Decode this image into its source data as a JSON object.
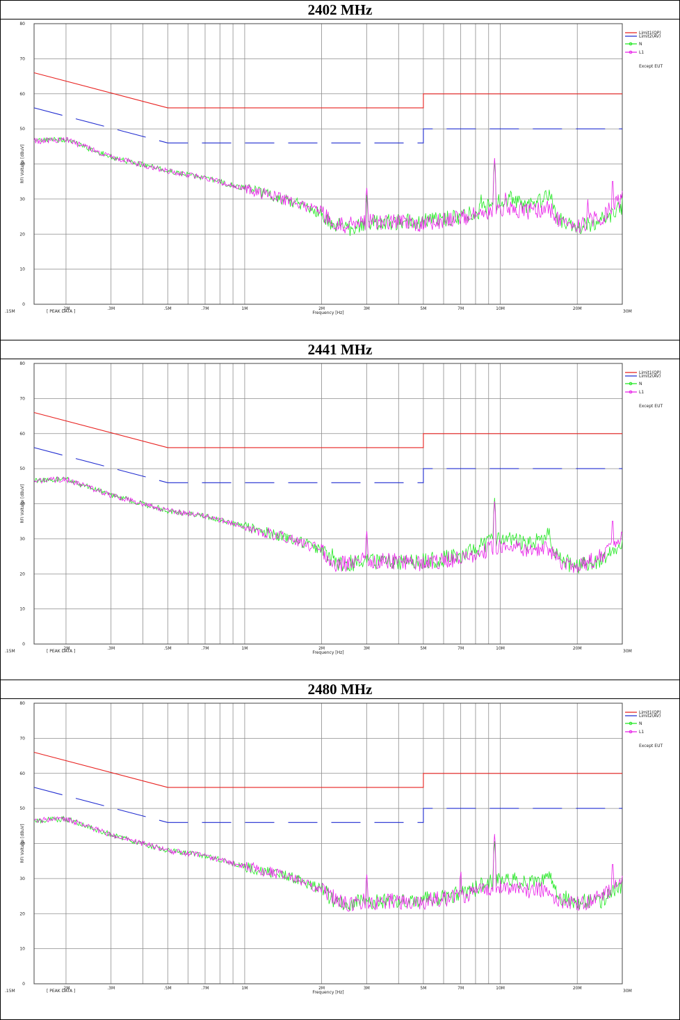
{
  "sections": [
    {
      "title": "2402 MHz"
    },
    {
      "title": "2441 MHz"
    },
    {
      "title": "2480 MHz"
    }
  ],
  "plot_labels": {
    "ylabel": "RFI Voltage [dBuV]",
    "xlabel": "Frequency [Hz]",
    "data_mode": "[ PEAK DATA ]",
    "note": "Except EUT"
  },
  "colors": {
    "limit_qp": "#e8211f",
    "limit_av": "#1f2bd0",
    "n": "#1fe81f",
    "l1": "#e81fe8",
    "grid": "#8c8c8c"
  },
  "chart_data": [
    {
      "type": "line",
      "title": "2402 MHz",
      "xlabel": "Frequency [Hz]",
      "ylabel": "RFI Voltage [dBuV]",
      "x_scale": "log",
      "xlim": [
        150000,
        30000000
      ],
      "ylim": [
        0,
        80
      ],
      "x_ticks": [
        {
          "value": 150000,
          "label": ".15M"
        },
        {
          "value": 200000,
          "label": ".2M"
        },
        {
          "value": 300000,
          "label": ".3M"
        },
        {
          "value": 500000,
          "label": ".5M"
        },
        {
          "value": 700000,
          "label": ".7M"
        },
        {
          "value": 1000000,
          "label": "1M"
        },
        {
          "value": 2000000,
          "label": "2M"
        },
        {
          "value": 3000000,
          "label": "3M"
        },
        {
          "value": 5000000,
          "label": "5M"
        },
        {
          "value": 7000000,
          "label": "7M"
        },
        {
          "value": 10000000,
          "label": "10M"
        },
        {
          "value": 20000000,
          "label": "20M"
        },
        {
          "value": 30000000,
          "label": "30M"
        }
      ],
      "y_ticks": [
        0,
        10,
        20,
        30,
        40,
        50,
        60,
        70,
        80
      ],
      "grid": true,
      "legend_position": "right",
      "series": [
        {
          "name": "Limit1(QP)",
          "style": "solid",
          "color": "#e8211f",
          "points": [
            [
              150000,
              66
            ],
            [
              500000,
              56
            ],
            [
              5000000,
              56
            ],
            [
              5000000,
              60
            ],
            [
              30000000,
              60
            ]
          ]
        },
        {
          "name": "Limit2(AV)",
          "style": "dashed",
          "color": "#1f2bd0",
          "points": [
            [
              150000,
              56
            ],
            [
              500000,
              46
            ],
            [
              5000000,
              46
            ],
            [
              5000000,
              50
            ],
            [
              30000000,
              50
            ]
          ]
        },
        {
          "name": "N",
          "style": "noisy",
          "color": "#1fe81f",
          "points": [
            [
              150000,
              46.5
            ],
            [
              200000,
              47
            ],
            [
              300000,
              42
            ],
            [
              500000,
              38
            ],
            [
              700000,
              36
            ],
            [
              1000000,
              33
            ],
            [
              1500000,
              29.5
            ],
            [
              2000000,
              26
            ],
            [
              2200000,
              23
            ],
            [
              2500000,
              21.5
            ],
            [
              3000000,
              23
            ],
            [
              4000000,
              23.5
            ],
            [
              5000000,
              23.5
            ],
            [
              7000000,
              25
            ],
            [
              8500000,
              27
            ],
            [
              10000000,
              29.5
            ],
            [
              13000000,
              28
            ],
            [
              15500000,
              31
            ],
            [
              17000000,
              24
            ],
            [
              20000000,
              22
            ],
            [
              25000000,
              24
            ],
            [
              30000000,
              28
            ]
          ],
          "spikes": [
            [
              3000000,
              32
            ],
            [
              8400000,
              32
            ],
            [
              9500000,
              41
            ],
            [
              11000000,
              34
            ]
          ]
        },
        {
          "name": "L1",
          "style": "noisy",
          "color": "#e81fe8",
          "points": [
            [
              150000,
              46.5
            ],
            [
              200000,
              47
            ],
            [
              300000,
              42
            ],
            [
              500000,
              38
            ],
            [
              700000,
              36
            ],
            [
              1000000,
              33
            ],
            [
              1500000,
              29.5
            ],
            [
              2000000,
              26.5
            ],
            [
              2200000,
              23
            ],
            [
              2500000,
              22.5
            ],
            [
              3000000,
              23.5
            ],
            [
              4000000,
              23.5
            ],
            [
              5000000,
              23
            ],
            [
              7000000,
              24.5
            ],
            [
              8500000,
              26
            ],
            [
              10000000,
              27.5
            ],
            [
              13000000,
              26.5
            ],
            [
              15500000,
              27.5
            ],
            [
              17000000,
              24
            ],
            [
              20000000,
              22.5
            ],
            [
              25000000,
              25
            ],
            [
              30000000,
              30
            ]
          ],
          "spikes": [
            [
              3000000,
              34
            ],
            [
              9500000,
              42
            ],
            [
              10500000,
              33
            ],
            [
              22000000,
              30
            ],
            [
              27500000,
              37
            ]
          ]
        }
      ]
    },
    {
      "type": "line",
      "title": "2441 MHz",
      "xlabel": "Frequency [Hz]",
      "ylabel": "RFI Voltage [dBuV]",
      "x_scale": "log",
      "xlim": [
        150000,
        30000000
      ],
      "ylim": [
        0,
        80
      ],
      "x_ticks": [
        {
          "value": 150000,
          "label": ".15M"
        },
        {
          "value": 200000,
          "label": ".2M"
        },
        {
          "value": 300000,
          "label": ".3M"
        },
        {
          "value": 500000,
          "label": ".5M"
        },
        {
          "value": 700000,
          "label": ".7M"
        },
        {
          "value": 1000000,
          "label": "1M"
        },
        {
          "value": 2000000,
          "label": "2M"
        },
        {
          "value": 3000000,
          "label": "3M"
        },
        {
          "value": 5000000,
          "label": "5M"
        },
        {
          "value": 7000000,
          "label": "7M"
        },
        {
          "value": 10000000,
          "label": "10M"
        },
        {
          "value": 20000000,
          "label": "20M"
        },
        {
          "value": 30000000,
          "label": "30M"
        }
      ],
      "y_ticks": [
        0,
        10,
        20,
        30,
        40,
        50,
        60,
        70,
        80
      ],
      "grid": true,
      "legend_position": "right",
      "series": [
        {
          "name": "Limit1(QP)",
          "style": "solid",
          "color": "#e8211f",
          "points": [
            [
              150000,
              66
            ],
            [
              500000,
              56
            ],
            [
              5000000,
              56
            ],
            [
              5000000,
              60
            ],
            [
              30000000,
              60
            ]
          ]
        },
        {
          "name": "Limit2(AV)",
          "style": "dashed",
          "color": "#1f2bd0",
          "points": [
            [
              150000,
              56
            ],
            [
              500000,
              46
            ],
            [
              5000000,
              46
            ],
            [
              5000000,
              50
            ],
            [
              30000000,
              50
            ]
          ]
        },
        {
          "name": "N",
          "style": "noisy",
          "color": "#1fe81f",
          "points": [
            [
              150000,
              46.5
            ],
            [
              200000,
              47
            ],
            [
              300000,
              42.5
            ],
            [
              500000,
              38
            ],
            [
              700000,
              36.5
            ],
            [
              1000000,
              33.5
            ],
            [
              1500000,
              30
            ],
            [
              2000000,
              27
            ],
            [
              2200000,
              23
            ],
            [
              2500000,
              23
            ],
            [
              3000000,
              23.5
            ],
            [
              4000000,
              23.5
            ],
            [
              5000000,
              23.5
            ],
            [
              7000000,
              25
            ],
            [
              8500000,
              28
            ],
            [
              10000000,
              30
            ],
            [
              13000000,
              28.5
            ],
            [
              15500000,
              31
            ],
            [
              17000000,
              24
            ],
            [
              20000000,
              22
            ],
            [
              25000000,
              24
            ],
            [
              30000000,
              28
            ]
          ],
          "spikes": [
            [
              2200000,
              28
            ],
            [
              8400000,
              31
            ],
            [
              9500000,
              42
            ],
            [
              15500000,
              34
            ]
          ]
        },
        {
          "name": "L1",
          "style": "noisy",
          "color": "#e81fe8",
          "points": [
            [
              150000,
              46.5
            ],
            [
              200000,
              47
            ],
            [
              300000,
              42.5
            ],
            [
              500000,
              38
            ],
            [
              700000,
              36.5
            ],
            [
              1000000,
              33.5
            ],
            [
              1500000,
              30
            ],
            [
              2000000,
              27
            ],
            [
              2200000,
              23
            ],
            [
              2500000,
              23
            ],
            [
              3000000,
              24
            ],
            [
              4000000,
              23.5
            ],
            [
              5000000,
              23
            ],
            [
              7000000,
              24.5
            ],
            [
              8500000,
              26.5
            ],
            [
              10000000,
              28
            ],
            [
              13000000,
              27
            ],
            [
              15500000,
              27
            ],
            [
              17000000,
              23.5
            ],
            [
              20000000,
              22
            ],
            [
              25000000,
              25
            ],
            [
              30000000,
              30
            ]
          ],
          "spikes": [
            [
              3000000,
              33
            ],
            [
              9500000,
              41
            ],
            [
              27500000,
              37
            ]
          ]
        }
      ]
    },
    {
      "type": "line",
      "title": "2480 MHz",
      "xlabel": "Frequency [Hz]",
      "ylabel": "RFI Voltage [dBuV]",
      "x_scale": "log",
      "xlim": [
        150000,
        30000000
      ],
      "ylim": [
        0,
        80
      ],
      "x_ticks": [
        {
          "value": 150000,
          "label": ".15M"
        },
        {
          "value": 200000,
          "label": ".2M"
        },
        {
          "value": 300000,
          "label": ".3M"
        },
        {
          "value": 500000,
          "label": ".5M"
        },
        {
          "value": 700000,
          "label": ".7M"
        },
        {
          "value": 1000000,
          "label": "1M"
        },
        {
          "value": 2000000,
          "label": "2M"
        },
        {
          "value": 3000000,
          "label": "3M"
        },
        {
          "value": 5000000,
          "label": "5M"
        },
        {
          "value": 7000000,
          "label": "7M"
        },
        {
          "value": 10000000,
          "label": "10M"
        },
        {
          "value": 20000000,
          "label": "20M"
        },
        {
          "value": 30000000,
          "label": "30M"
        }
      ],
      "y_ticks": [
        0,
        10,
        20,
        30,
        40,
        50,
        60,
        70,
        80
      ],
      "grid": true,
      "legend_position": "right",
      "series": [
        {
          "name": "Limit1(QP)",
          "style": "solid",
          "color": "#e8211f",
          "points": [
            [
              150000,
              66
            ],
            [
              500000,
              56
            ],
            [
              5000000,
              56
            ],
            [
              5000000,
              60
            ],
            [
              30000000,
              60
            ]
          ]
        },
        {
          "name": "Limit2(AV)",
          "style": "dashed",
          "color": "#1f2bd0",
          "points": [
            [
              150000,
              56
            ],
            [
              500000,
              46
            ],
            [
              5000000,
              46
            ],
            [
              5000000,
              50
            ],
            [
              30000000,
              50
            ]
          ]
        },
        {
          "name": "N",
          "style": "noisy",
          "color": "#1fe81f",
          "points": [
            [
              150000,
              46.5
            ],
            [
              200000,
              47
            ],
            [
              300000,
              42.5
            ],
            [
              500000,
              38
            ],
            [
              700000,
              36.5
            ],
            [
              1000000,
              33.5
            ],
            [
              1500000,
              30.5
            ],
            [
              2000000,
              27
            ],
            [
              2200000,
              24
            ],
            [
              2500000,
              23
            ],
            [
              3000000,
              23.5
            ],
            [
              4000000,
              23.5
            ],
            [
              5000000,
              24
            ],
            [
              7000000,
              25.5
            ],
            [
              8500000,
              28
            ],
            [
              10000000,
              30
            ],
            [
              13000000,
              29
            ],
            [
              15500000,
              31
            ],
            [
              17000000,
              25
            ],
            [
              20000000,
              23
            ],
            [
              25000000,
              24
            ],
            [
              30000000,
              28
            ]
          ],
          "spikes": [
            [
              8400000,
              31
            ],
            [
              9500000,
              41
            ],
            [
              15500000,
              33
            ]
          ]
        },
        {
          "name": "L1",
          "style": "noisy",
          "color": "#e81fe8",
          "points": [
            [
              150000,
              46.5
            ],
            [
              200000,
              47
            ],
            [
              300000,
              42.5
            ],
            [
              500000,
              38
            ],
            [
              700000,
              36.5
            ],
            [
              1000000,
              33.5
            ],
            [
              1500000,
              30.5
            ],
            [
              2000000,
              27
            ],
            [
              2200000,
              25
            ],
            [
              2500000,
              23
            ],
            [
              3000000,
              23.5
            ],
            [
              4000000,
              23.5
            ],
            [
              5000000,
              23.5
            ],
            [
              7000000,
              25
            ],
            [
              8500000,
              26.5
            ],
            [
              10000000,
              28
            ],
            [
              13000000,
              26.5
            ],
            [
              15500000,
              27
            ],
            [
              17000000,
              23.5
            ],
            [
              20000000,
              22.5
            ],
            [
              25000000,
              25
            ],
            [
              30000000,
              30
            ]
          ],
          "spikes": [
            [
              3000000,
              32
            ],
            [
              7000000,
              33
            ],
            [
              9500000,
              43
            ],
            [
              27500000,
              36
            ]
          ]
        }
      ]
    }
  ]
}
